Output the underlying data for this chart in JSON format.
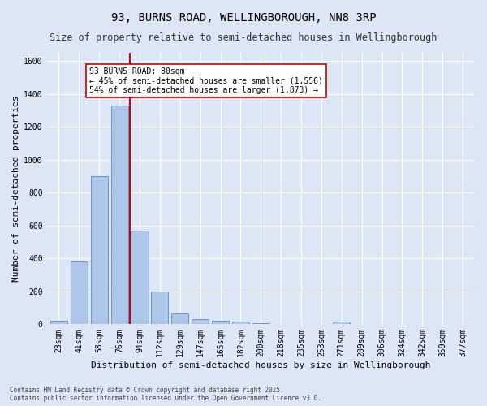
{
  "title": "93, BURNS ROAD, WELLINGBOROUGH, NN8 3RP",
  "subtitle": "Size of property relative to semi-detached houses in Wellingborough",
  "xlabel": "Distribution of semi-detached houses by size in Wellingborough",
  "ylabel": "Number of semi-detached properties",
  "categories": [
    "23sqm",
    "41sqm",
    "58sqm",
    "76sqm",
    "94sqm",
    "112sqm",
    "129sqm",
    "147sqm",
    "165sqm",
    "182sqm",
    "200sqm",
    "218sqm",
    "235sqm",
    "253sqm",
    "271sqm",
    "289sqm",
    "306sqm",
    "324sqm",
    "342sqm",
    "359sqm",
    "377sqm"
  ],
  "values": [
    20,
    380,
    900,
    1330,
    570,
    200,
    65,
    30,
    20,
    15,
    5,
    2,
    1,
    0,
    15,
    0,
    0,
    0,
    0,
    0,
    0
  ],
  "bar_color": "#aec6e8",
  "bar_edge_color": "#5a8fc2",
  "property_line_x": 3.5,
  "property_label": "93 BURNS ROAD: 80sqm",
  "annotation_smaller": "← 45% of semi-detached houses are smaller (1,556)",
  "annotation_larger": "54% of semi-detached houses are larger (1,873) →",
  "red_line_color": "#cc0000",
  "annotation_box_color": "#ffffff",
  "annotation_box_edge": "#cc0000",
  "ylim": [
    0,
    1650
  ],
  "yticks": [
    0,
    200,
    400,
    600,
    800,
    1000,
    1200,
    1400,
    1600
  ],
  "background_color": "#dce6f5",
  "fig_background_color": "#dce6f5",
  "footer": "Contains HM Land Registry data © Crown copyright and database right 2025.\nContains public sector information licensed under the Open Government Licence v3.0.",
  "title_fontsize": 10,
  "subtitle_fontsize": 8.5,
  "axis_label_fontsize": 8,
  "tick_fontsize": 7
}
